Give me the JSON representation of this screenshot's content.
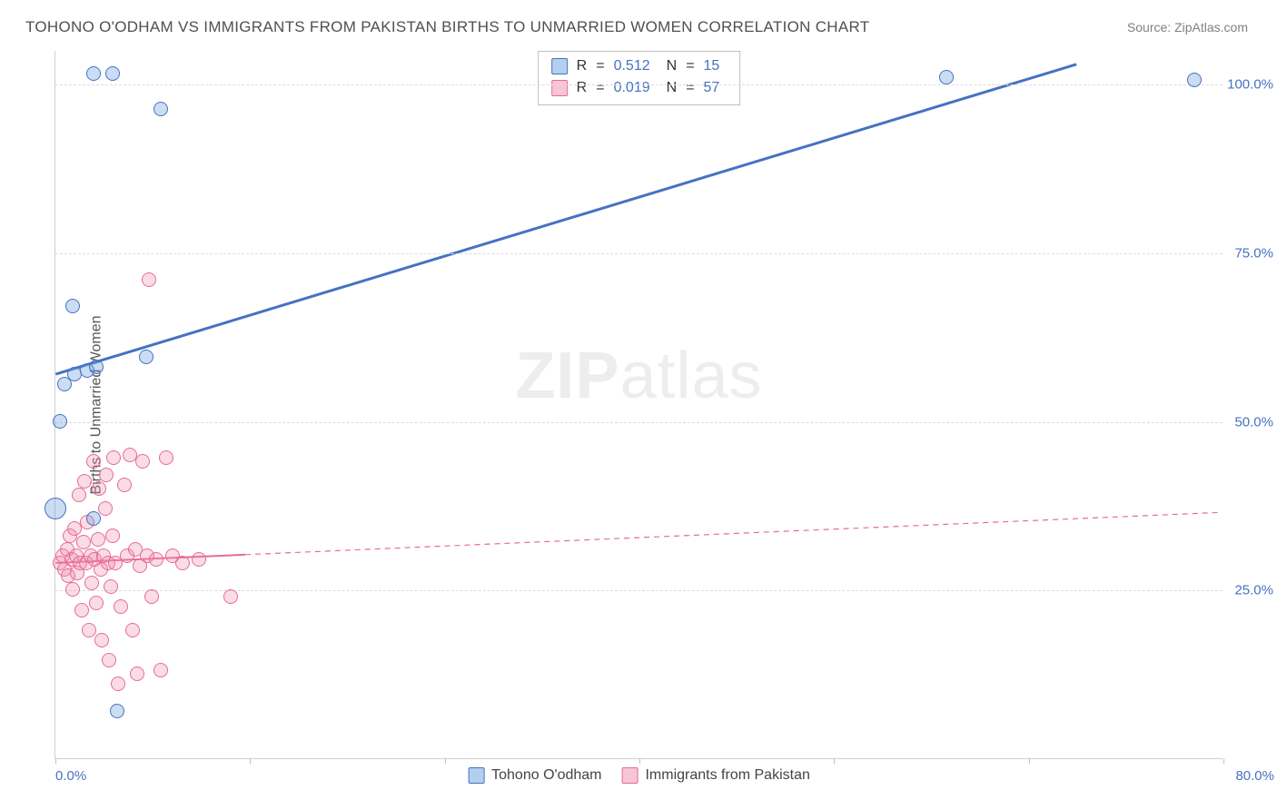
{
  "title": "TOHONO O'ODHAM VS IMMIGRANTS FROM PAKISTAN BIRTHS TO UNMARRIED WOMEN CORRELATION CHART",
  "source": "Source: ZipAtlas.com",
  "ylabel": "Births to Unmarried Women",
  "watermark_a": "ZIP",
  "watermark_b": "atlas",
  "chart": {
    "type": "scatter",
    "xlim": [
      0,
      80
    ],
    "ylim": [
      0,
      105
    ],
    "yticks": [
      25,
      50,
      75,
      100
    ],
    "ytick_labels": [
      "25.0%",
      "50.0%",
      "75.0%",
      "100.0%"
    ],
    "xticks": [
      0,
      26.7,
      53.3,
      80
    ],
    "xtick_labels": [
      "0.0%",
      "",
      "",
      "80.0%"
    ],
    "xtick_minors": [
      13.3,
      40,
      66.7
    ],
    "background_color": "#ffffff",
    "grid_color": "#dcdcdc",
    "axis_color": "#d0d0d0",
    "marker_radius": 8,
    "marker_radius_large": 12,
    "series_blue": {
      "label": "Tohono O'odham",
      "color_fill": "rgba(106,158,219,0.35)",
      "color_stroke": "#4472c4",
      "R": "0.512",
      "N": "15",
      "trend": {
        "x1": 0,
        "y1": 57,
        "x2": 70,
        "y2": 103,
        "width": 3,
        "dash": "none"
      },
      "points": [
        {
          "x": 0.0,
          "y": 37.0,
          "r": 12
        },
        {
          "x": 0.3,
          "y": 50.0
        },
        {
          "x": 0.6,
          "y": 55.5
        },
        {
          "x": 1.3,
          "y": 57.0
        },
        {
          "x": 2.2,
          "y": 57.5
        },
        {
          "x": 2.8,
          "y": 58.0
        },
        {
          "x": 1.2,
          "y": 67.0
        },
        {
          "x": 6.2,
          "y": 59.5
        },
        {
          "x": 4.2,
          "y": 7.0
        },
        {
          "x": 2.6,
          "y": 35.5
        },
        {
          "x": 2.6,
          "y": 101.5
        },
        {
          "x": 3.9,
          "y": 101.5
        },
        {
          "x": 7.2,
          "y": 96.2
        },
        {
          "x": 61.0,
          "y": 101.0
        },
        {
          "x": 78.0,
          "y": 100.5
        }
      ]
    },
    "series_pink": {
      "label": "Immigrants from Pakistan",
      "color_fill": "rgba(240,140,170,0.30)",
      "color_stroke": "#e86a9a",
      "R": "0.019",
      "N": "57",
      "trend": {
        "x1": 0,
        "y1": 29,
        "x2": 80,
        "y2": 36.5,
        "width": 2,
        "dash": "6,5",
        "solid_until": 13
      },
      "points": [
        {
          "x": 0.3,
          "y": 29.0
        },
        {
          "x": 0.5,
          "y": 30.0
        },
        {
          "x": 0.6,
          "y": 28.0
        },
        {
          "x": 0.8,
          "y": 31.0
        },
        {
          "x": 0.9,
          "y": 27.0
        },
        {
          "x": 1.0,
          "y": 33.0
        },
        {
          "x": 1.1,
          "y": 29.5
        },
        {
          "x": 1.2,
          "y": 25.0
        },
        {
          "x": 1.3,
          "y": 34.0
        },
        {
          "x": 1.4,
          "y": 30.0
        },
        {
          "x": 1.5,
          "y": 27.5
        },
        {
          "x": 1.6,
          "y": 39.0
        },
        {
          "x": 1.7,
          "y": 29.0
        },
        {
          "x": 1.8,
          "y": 22.0
        },
        {
          "x": 1.9,
          "y": 32.0
        },
        {
          "x": 2.0,
          "y": 41.0
        },
        {
          "x": 2.1,
          "y": 29.0
        },
        {
          "x": 2.2,
          "y": 35.0
        },
        {
          "x": 2.3,
          "y": 19.0
        },
        {
          "x": 2.4,
          "y": 30.0
        },
        {
          "x": 2.5,
          "y": 26.0
        },
        {
          "x": 2.6,
          "y": 44.0
        },
        {
          "x": 2.7,
          "y": 29.5
        },
        {
          "x": 2.8,
          "y": 23.0
        },
        {
          "x": 2.9,
          "y": 32.5
        },
        {
          "x": 3.0,
          "y": 40.0
        },
        {
          "x": 3.1,
          "y": 28.0
        },
        {
          "x": 3.2,
          "y": 17.5
        },
        {
          "x": 3.3,
          "y": 30.0
        },
        {
          "x": 3.4,
          "y": 37.0
        },
        {
          "x": 3.5,
          "y": 42.0
        },
        {
          "x": 3.6,
          "y": 29.0
        },
        {
          "x": 3.7,
          "y": 14.5
        },
        {
          "x": 3.8,
          "y": 25.5
        },
        {
          "x": 3.9,
          "y": 33.0
        },
        {
          "x": 4.0,
          "y": 44.5
        },
        {
          "x": 4.1,
          "y": 29.0
        },
        {
          "x": 4.3,
          "y": 11.0
        },
        {
          "x": 4.5,
          "y": 22.5
        },
        {
          "x": 4.7,
          "y": 40.5
        },
        {
          "x": 4.9,
          "y": 30.0
        },
        {
          "x": 5.1,
          "y": 45.0
        },
        {
          "x": 5.3,
          "y": 19.0
        },
        {
          "x": 5.5,
          "y": 31.0
        },
        {
          "x": 5.6,
          "y": 12.5
        },
        {
          "x": 5.8,
          "y": 28.5
        },
        {
          "x": 6.0,
          "y": 44.0
        },
        {
          "x": 6.3,
          "y": 30.0
        },
        {
          "x": 6.4,
          "y": 71.0
        },
        {
          "x": 6.6,
          "y": 24.0
        },
        {
          "x": 6.9,
          "y": 29.5
        },
        {
          "x": 7.2,
          "y": 13.0
        },
        {
          "x": 7.6,
          "y": 44.5
        },
        {
          "x": 8.0,
          "y": 30.0
        },
        {
          "x": 8.7,
          "y": 29.0
        },
        {
          "x": 9.8,
          "y": 29.5
        },
        {
          "x": 12.0,
          "y": 24.0
        }
      ]
    }
  },
  "stats_labels": {
    "R": "R",
    "N": "N",
    "eq": "="
  },
  "legend_labels": {
    "blue": "Tohono O'odham",
    "pink": "Immigrants from Pakistan"
  }
}
